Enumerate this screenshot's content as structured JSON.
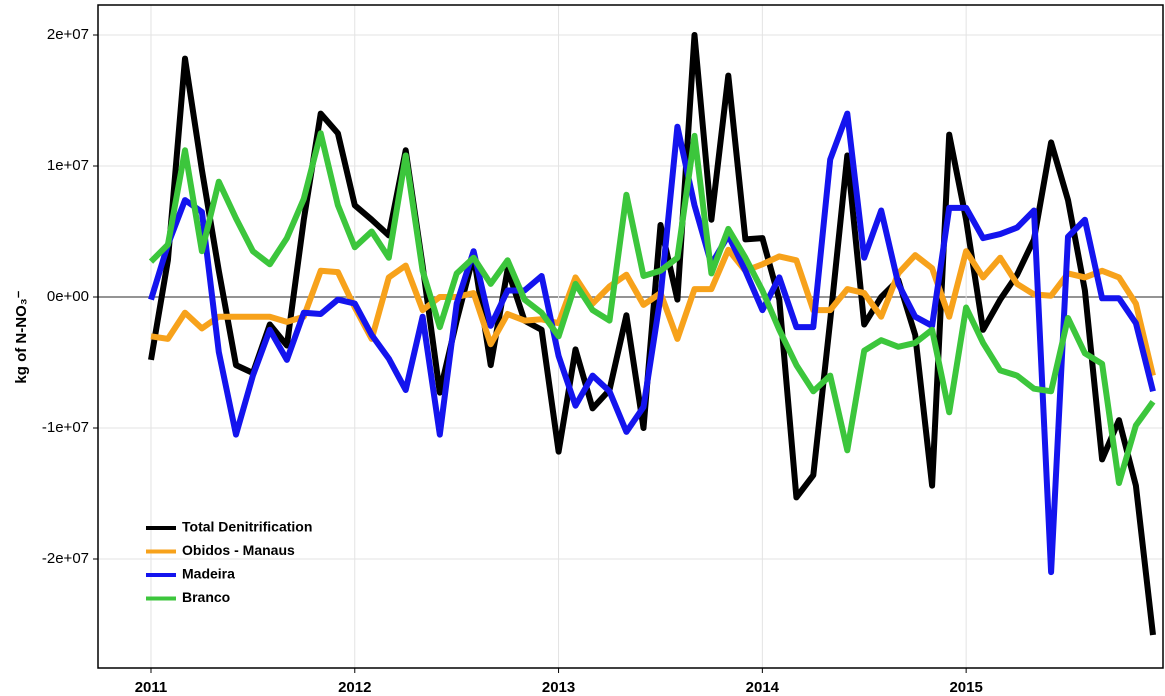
{
  "chart_data": {
    "type": "line",
    "y_label": "kg of N-NO₃⁻",
    "x": [
      2011,
      2011.083,
      2011.167,
      2011.25,
      2011.333,
      2011.417,
      2011.5,
      2011.583,
      2011.667,
      2011.75,
      2011.833,
      2011.917,
      2012,
      2012.083,
      2012.167,
      2012.25,
      2012.333,
      2012.417,
      2012.5,
      2012.583,
      2012.667,
      2012.75,
      2012.833,
      2012.917,
      2013,
      2013.083,
      2013.167,
      2013.25,
      2013.333,
      2013.417,
      2013.5,
      2013.583,
      2013.667,
      2013.75,
      2013.833,
      2013.917,
      2014,
      2014.083,
      2014.167,
      2014.25,
      2014.333,
      2014.417,
      2014.5,
      2014.583,
      2014.667,
      2014.75,
      2014.833,
      2014.917,
      2015,
      2015.083,
      2015.167,
      2015.25,
      2015.333,
      2015.417,
      2015.5,
      2015.583,
      2015.667,
      2015.75,
      2015.833,
      2015.917
    ],
    "xlim": [
      2010.74,
      2015.966
    ],
    "xticks": [
      2011,
      2012,
      2013,
      2014,
      2015
    ],
    "ylim": [
      -28320000.0,
      22290000.0
    ],
    "yticks": [
      {
        "value": -20000000.0,
        "label": "-2e+07"
      },
      {
        "value": -10000000.0,
        "label": "-1e+07"
      },
      {
        "value": 0,
        "label": "0e+00"
      },
      {
        "value": 10000000.0,
        "label": "1e+07"
      },
      {
        "value": 20000000.0,
        "label": "2e+07"
      }
    ],
    "grid": true,
    "legend_position": "lower-left",
    "series": [
      {
        "name": "Total Denitrification",
        "color": "#000000",
        "values": [
          -4800000.0,
          2800000.0,
          18200000.0,
          9700000.0,
          2000000.0,
          -5200000.0,
          -5800000.0,
          -2100000.0,
          -3700000.0,
          5900000.0,
          14000000.0,
          12500000.0,
          7000000.0,
          5900000.0,
          4700000.0,
          11200000.0,
          2400000.0,
          -7300000.0,
          -1800000.0,
          3200000.0,
          -5200000.0,
          2100000.0,
          -1800000.0,
          -2500000.0,
          -11800000.0,
          -4000000.0,
          -8500000.0,
          -7100000.0,
          -1400000.0,
          -10000000.0,
          5500000.0,
          -200000.0,
          20000000.0,
          5900000.0,
          16900000.0,
          4400000.0,
          4500000.0,
          -200000.0,
          -15300000.0,
          -13600000.0,
          -1800000.0,
          10800000.0,
          -2100000.0,
          0,
          1300000.0,
          -2900000.0,
          -14400000.0,
          12400000.0,
          5900000.0,
          -2500000.0,
          -200000.0,
          1700000.0,
          4400000.0,
          11800000.0,
          7400000.0,
          500000.0,
          -12400000.0,
          -9400000.0,
          -14400000.0,
          -25800000.0
        ]
      },
      {
        "name": "Obidos - Manaus",
        "color": "#f7a21b",
        "values": [
          -3000000.0,
          -3200000.0,
          -1200000.0,
          -2400000.0,
          -1500000.0,
          -1500000.0,
          -1500000.0,
          -1500000.0,
          -1900000.0,
          -1500000.0,
          2000000.0,
          1900000.0,
          -800000.0,
          -3200000.0,
          1500000.0,
          2400000.0,
          -1000000.0,
          0,
          0,
          300000.0,
          -3600000.0,
          -1300000.0,
          -1800000.0,
          -1700000.0,
          -2000000.0,
          1500000.0,
          -500000.0,
          800000.0,
          1700000.0,
          -600000.0,
          300000.0,
          -3200000.0,
          600000.0,
          600000.0,
          3600000.0,
          2000000.0,
          2500000.0,
          3100000.0,
          2800000.0,
          -1000000.0,
          -1000000.0,
          600000.0,
          300000.0,
          -1500000.0,
          1800000.0,
          3200000.0,
          2200000.0,
          -1500000.0,
          3500000.0,
          1500000.0,
          3000000.0,
          1000000.0,
          200000.0,
          100000.0,
          1800000.0,
          1500000.0,
          2000000.0,
          1500000.0,
          -500000.0,
          -6000000.0
        ]
      },
      {
        "name": "Madeira",
        "color": "#1414ee",
        "values": [
          -200000.0,
          4000000.0,
          7400000.0,
          6500000.0,
          -4200000.0,
          -10500000.0,
          -6000000.0,
          -2500000.0,
          -4800000.0,
          -1200000.0,
          -1300000.0,
          -200000.0,
          -500000.0,
          -2900000.0,
          -4700000.0,
          -7100000.0,
          -1500000.0,
          -10500000.0,
          -500000.0,
          3500000.0,
          -2200000.0,
          500000.0,
          500000.0,
          1600000.0,
          -4500000.0,
          -8300000.0,
          -6000000.0,
          -7200000.0,
          -10300000.0,
          -8400000.0,
          0,
          13000000.0,
          7000000.0,
          2500000.0,
          4700000.0,
          2000000.0,
          -1000000.0,
          1500000.0,
          -2300000.0,
          -2300000.0,
          10500000.0,
          14000000.0,
          3000000.0,
          6600000.0,
          1000000.0,
          -1500000.0,
          -2200000.0,
          6800000.0,
          6800000.0,
          4500000.0,
          4800000.0,
          5300000.0,
          6600000.0,
          -21000000.0,
          4600000.0,
          5900000.0,
          -100000.0,
          -100000.0,
          -2000000.0,
          -7200000.0
        ]
      },
      {
        "name": "Branco",
        "color": "#3cc63c",
        "values": [
          2700000.0,
          4000000.0,
          11200000.0,
          3500000.0,
          8800000.0,
          6000000.0,
          3500000.0,
          2500000.0,
          4500000.0,
          7500000.0,
          12500000.0,
          7000000.0,
          3800000.0,
          5000000.0,
          3000000.0,
          10800000.0,
          2000000.0,
          -2300000.0,
          1800000.0,
          3000000.0,
          1000000.0,
          2800000.0,
          -200000.0,
          -1200000.0,
          -3000000.0,
          1000000.0,
          -1000000.0,
          -1800000.0,
          7800000.0,
          1600000.0,
          2000000.0,
          3000000.0,
          12300000.0,
          1800000.0,
          5200000.0,
          3000000.0,
          500000.0,
          -2500000.0,
          -5200000.0,
          -7200000.0,
          -6000000.0,
          -11700000.0,
          -4100000.0,
          -3300000.0,
          -3800000.0,
          -3500000.0,
          -2500000.0,
          -8800000.0,
          -800000.0,
          -3500000.0,
          -5600000.0,
          -6000000.0,
          -7000000.0,
          -7200000.0,
          -1600000.0,
          -4300000.0,
          -5100000.0,
          -14200000.0,
          -9800000.0,
          -8000000.0
        ]
      }
    ]
  }
}
